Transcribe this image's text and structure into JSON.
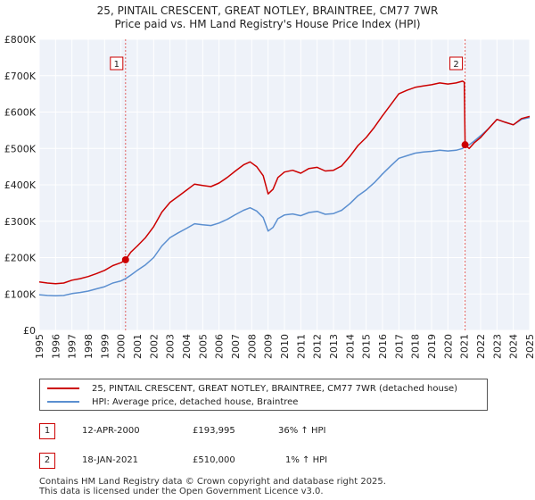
{
  "title_line1": "25, PINTAIL CRESCENT, GREAT NOTLEY, BRAINTREE, CM77 7WR",
  "title_line2": "Price paid vs. HM Land Registry's House Price Index (HPI)",
  "colors": {
    "red": "#cc0000",
    "blue": "#5b8fd0",
    "grid": "#e6e6e6",
    "plot_bg": "#eef2f9"
  },
  "legend": {
    "property": "25, PINTAIL CRESCENT, GREAT NOTLEY, BRAINTREE, CM77 7WR (detached house)",
    "hpi": "HPI: Average price, detached house, Braintree"
  },
  "sales": [
    {
      "num": "1",
      "date": "12-APR-2000",
      "price": "£193,995",
      "hpi": "36% ↑ HPI"
    },
    {
      "num": "2",
      "date": "18-JAN-2021",
      "price": "£510,000",
      "hpi": "1% ↑ HPI"
    }
  ],
  "footer_line1": "Contains HM Land Registry data © Crown copyright and database right 2025.",
  "footer_line2": "This data is licensed under the Open Government Licence v3.0.",
  "chart_data": {
    "type": "line",
    "title": "25, PINTAIL CRESCENT, GREAT NOTLEY, BRAINTREE, CM77 7WR",
    "subtitle": "Price paid vs. HM Land Registry's House Price Index (HPI)",
    "xlim": [
      1995,
      2025
    ],
    "ylim": [
      0,
      800000
    ],
    "y_ticks": [
      0,
      100000,
      200000,
      300000,
      400000,
      500000,
      600000,
      700000,
      800000
    ],
    "y_tick_labels": [
      "£0",
      "£100K",
      "£200K",
      "£300K",
      "£400K",
      "£500K",
      "£600K",
      "£700K",
      "£800K"
    ],
    "x_ticks": [
      1995,
      1996,
      1997,
      1998,
      1999,
      2000,
      2001,
      2002,
      2003,
      2004,
      2005,
      2006,
      2007,
      2008,
      2009,
      2010,
      2011,
      2012,
      2013,
      2014,
      2015,
      2016,
      2017,
      2018,
      2019,
      2020,
      2021,
      2022,
      2023,
      2024,
      2025
    ],
    "x_tick_labels": [
      "1995",
      "1996",
      "1997",
      "1998",
      "1999",
      "2000",
      "2001",
      "2002",
      "2003",
      "2004",
      "2005",
      "2006",
      "2007",
      "2008",
      "2009",
      "2010",
      "2011",
      "2012",
      "2013",
      "2014",
      "2015",
      "2016",
      "2017",
      "2018",
      "2019",
      "2020",
      "2021",
      "2022",
      "2023",
      "2024",
      "2025"
    ],
    "legend_position": "below",
    "series": [
      {
        "name": "25, PINTAIL CRESCENT, GREAT NOTLEY, BRAINTREE, CM77 7WR (detached house)",
        "color": "#cc0000",
        "x": [
          1995.0,
          1995.5,
          1996.0,
          1996.5,
          1997.0,
          1997.5,
          1998.0,
          1998.5,
          1999.0,
          1999.5,
          2000.0,
          2000.28,
          2000.6,
          2001.0,
          2001.5,
          2002.0,
          2002.5,
          2003.0,
          2003.5,
          2004.0,
          2004.5,
          2005.0,
          2005.5,
          2006.0,
          2006.5,
          2007.0,
          2007.5,
          2007.9,
          2008.3,
          2008.7,
          2009.0,
          2009.3,
          2009.6,
          2010.0,
          2010.5,
          2011.0,
          2011.5,
          2012.0,
          2012.5,
          2013.0,
          2013.5,
          2014.0,
          2014.5,
          2015.0,
          2015.5,
          2016.0,
          2016.5,
          2017.0,
          2017.5,
          2018.0,
          2018.5,
          2019.0,
          2019.5,
          2020.0,
          2020.5,
          2020.9,
          2021.0,
          2021.05,
          2021.3,
          2021.6,
          2022.0,
          2022.5,
          2023.0,
          2023.5,
          2024.0,
          2024.5,
          2025.0
        ],
        "values": [
          133000,
          130000,
          128000,
          130000,
          138000,
          142000,
          148000,
          156000,
          165000,
          178000,
          186000,
          193995,
          215000,
          232000,
          255000,
          285000,
          325000,
          352000,
          368000,
          385000,
          402000,
          398000,
          395000,
          405000,
          420000,
          438000,
          455000,
          463000,
          450000,
          425000,
          375000,
          388000,
          420000,
          435000,
          440000,
          432000,
          445000,
          448000,
          438000,
          440000,
          452000,
          478000,
          508000,
          530000,
          558000,
          590000,
          620000,
          650000,
          660000,
          668000,
          672000,
          675000,
          680000,
          677000,
          680000,
          685000,
          682000,
          510000,
          500000,
          515000,
          530000,
          555000,
          580000,
          572000,
          565000,
          582000,
          588000
        ]
      },
      {
        "name": "HPI: Average price, detached house, Braintree",
        "color": "#5b8fd0",
        "x": [
          1995.0,
          1995.5,
          1996.0,
          1996.5,
          1997.0,
          1997.5,
          1998.0,
          1998.5,
          1999.0,
          1999.5,
          2000.0,
          2000.28,
          2000.6,
          2001.0,
          2001.5,
          2002.0,
          2002.5,
          2003.0,
          2003.5,
          2004.0,
          2004.5,
          2005.0,
          2005.5,
          2006.0,
          2006.5,
          2007.0,
          2007.5,
          2007.9,
          2008.3,
          2008.7,
          2009.0,
          2009.3,
          2009.6,
          2010.0,
          2010.5,
          2011.0,
          2011.5,
          2012.0,
          2012.5,
          2013.0,
          2013.5,
          2014.0,
          2014.5,
          2015.0,
          2015.5,
          2016.0,
          2016.5,
          2017.0,
          2017.5,
          2018.0,
          2018.5,
          2019.0,
          2019.5,
          2020.0,
          2020.5,
          2020.9,
          2021.0,
          2021.05,
          2021.3,
          2021.6,
          2022.0,
          2022.5,
          2023.0,
          2023.5,
          2024.0,
          2024.5,
          2025.0
        ],
        "values": [
          98000,
          96000,
          95000,
          96000,
          101000,
          104000,
          108000,
          114000,
          120000,
          130000,
          136000,
          142000,
          152000,
          165000,
          180000,
          200000,
          232000,
          255000,
          268000,
          280000,
          293000,
          290000,
          288000,
          295000,
          305000,
          318000,
          330000,
          337000,
          328000,
          310000,
          273000,
          283000,
          307000,
          317000,
          320000,
          315000,
          324000,
          327000,
          319000,
          321000,
          330000,
          348000,
          370000,
          386000,
          406000,
          430000,
          452000,
          473000,
          480000,
          487000,
          490000,
          492000,
          495000,
          493000,
          495000,
          500000,
          505000,
          508000,
          510000,
          520000,
          535000,
          555000,
          580000,
          572000,
          565000,
          580000,
          585000
        ]
      }
    ],
    "markers": [
      {
        "label": "1",
        "x": 2000.28,
        "y": 193995
      },
      {
        "label": "2",
        "x": 2021.05,
        "y": 510000
      }
    ]
  }
}
